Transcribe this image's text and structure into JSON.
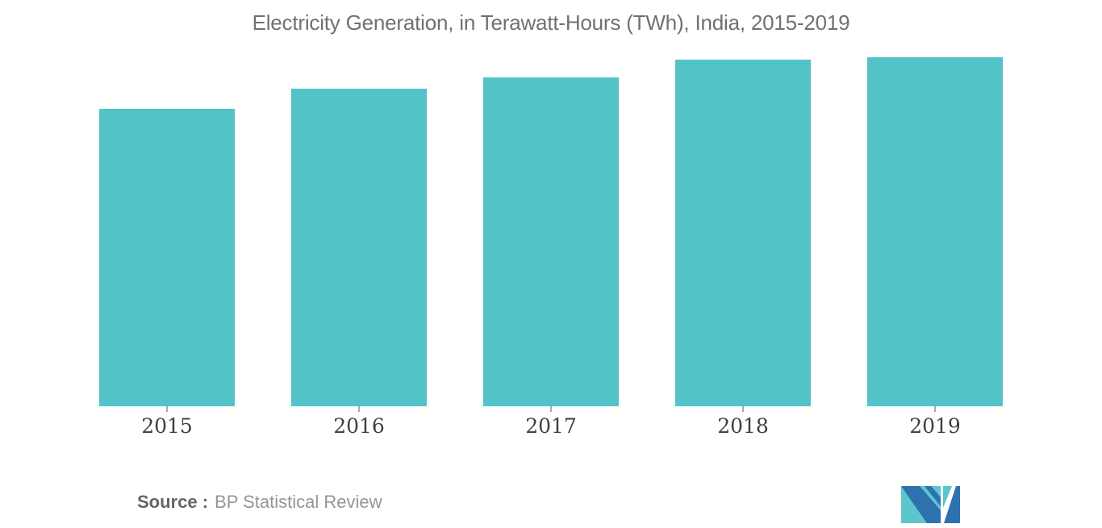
{
  "page": {
    "background": "#ffffff"
  },
  "chart_data": {
    "type": "bar",
    "title": "Electricity Generation, in Terawatt-Hours (TWh), India, 2015-2019",
    "categories": [
      "2015",
      "2016",
      "2017",
      "2018",
      "2019"
    ],
    "values": [
      1383,
      1477,
      1532,
      1614,
      1624
    ],
    "unit": "TWh",
    "xlabel": "",
    "ylabel": "",
    "ylim": [
      0,
      1624
    ],
    "grid": false,
    "legend": false,
    "y_axis_visible": false,
    "bar_color": "#52c3c9"
  },
  "source": {
    "label": "Source :",
    "text": "BP Statistical Review"
  },
  "logo": {
    "name": "mordor-intelligence-logo",
    "teal": "#5bc6cb",
    "blue": "#2d71ae"
  },
  "colors": {
    "title": "#6e7174",
    "axis_label": "#3d4043",
    "tick": "#a9abad",
    "source_label": "#636567",
    "source_text": "#939598"
  }
}
